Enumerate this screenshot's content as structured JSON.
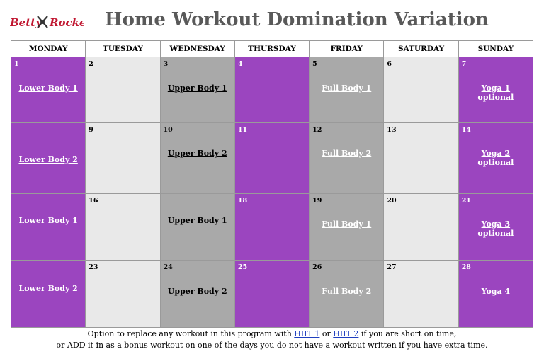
{
  "header": {
    "logo_text": "Betty Rocker",
    "title": "Home Workout Domination Variation"
  },
  "days": [
    "MONDAY",
    "TUESDAY",
    "WEDNESDAY",
    "THURSDAY",
    "FRIDAY",
    "SATURDAY",
    "SUNDAY"
  ],
  "weeks": [
    {
      "cells": [
        {
          "num": "1",
          "workout": "Lower Body 1",
          "sub": ""
        },
        {
          "num": "2",
          "workout": "",
          "sub": ""
        },
        {
          "num": "3",
          "workout": "Upper Body 1",
          "sub": ""
        },
        {
          "num": "4",
          "workout": "",
          "sub": ""
        },
        {
          "num": "5",
          "workout": "Full Body 1",
          "sub": ""
        },
        {
          "num": "6",
          "workout": "",
          "sub": ""
        },
        {
          "num": "7",
          "workout": "Yoga 1",
          "sub": "optional"
        }
      ]
    },
    {
      "cells": [
        {
          "num": "",
          "workout": "Lower Body 2",
          "sub": ""
        },
        {
          "num": "9",
          "workout": "",
          "sub": ""
        },
        {
          "num": "10",
          "workout": "Upper Body 2",
          "sub": ""
        },
        {
          "num": "11",
          "workout": "",
          "sub": ""
        },
        {
          "num": "12",
          "workout": "Full Body 2",
          "sub": ""
        },
        {
          "num": "13",
          "workout": "",
          "sub": ""
        },
        {
          "num": "14",
          "workout": "Yoga 2",
          "sub": "optional"
        }
      ]
    },
    {
      "cells": [
        {
          "num": "",
          "workout": "Lower Body 1",
          "sub": ""
        },
        {
          "num": "16",
          "workout": "",
          "sub": ""
        },
        {
          "num": "",
          "workout": "Upper Body 1",
          "sub": ""
        },
        {
          "num": "18",
          "workout": "",
          "sub": ""
        },
        {
          "num": "19",
          "workout": "Full Body 1",
          "sub": ""
        },
        {
          "num": "20",
          "workout": "",
          "sub": ""
        },
        {
          "num": "21",
          "workout": "Yoga 3",
          "sub": "optional"
        }
      ]
    },
    {
      "cells": [
        {
          "num": "",
          "workout": "Lower Body 2",
          "sub": ""
        },
        {
          "num": "23",
          "workout": "",
          "sub": ""
        },
        {
          "num": "24",
          "workout": "Upper Body 2",
          "sub": ""
        },
        {
          "num": "25",
          "workout": "",
          "sub": ""
        },
        {
          "num": "26",
          "workout": "Full Body 2",
          "sub": ""
        },
        {
          "num": "27",
          "workout": "",
          "sub": ""
        },
        {
          "num": "28",
          "workout": "Yoga 4",
          "sub": ""
        }
      ]
    }
  ],
  "footer": {
    "line1_before": "Option to replace any workout in this program with ",
    "link1": "HIIT 1",
    "line1_or": " or ",
    "link2": "HIIT 2",
    "line1_after": " if you are short on time,",
    "line2": "or ADD it in as a bonus workout on one of the days you do not have a workout written if you have extra time."
  },
  "colors": {
    "purple": "#9b45bf",
    "light_gray": "#e9e9e9",
    "dark_gray": "#a9a9a9",
    "title_gray": "#595959",
    "link_blue": "#1f3fbf"
  }
}
